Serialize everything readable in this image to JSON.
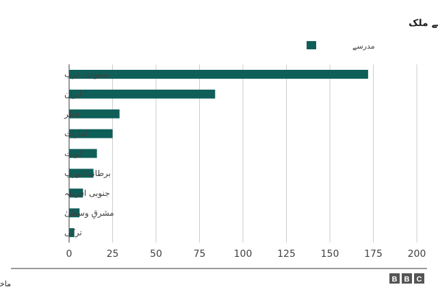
{
  "chart_data": {
    "type": "bar",
    "orientation": "horizontal",
    "title": "امداد دینے والے ملک",
    "categories": [
      "سعودی عرب",
      "ایران",
      "قطر",
      "امارات",
      "کویت",
      "برطانیہ/یورپ",
      "جنوبی افریقہ",
      "مشرقِ وسطیٰ",
      "ترکی"
    ],
    "series": [
      {
        "name": "مدرسے",
        "values": [
          172,
          84,
          29,
          25,
          16,
          14,
          8,
          6,
          3
        ]
      }
    ],
    "xticks": [
      "0",
      "25",
      "50",
      "75",
      "100",
      "125",
      "150",
      "175",
      "200"
    ],
    "xlim": [
      0,
      200
    ],
    "grid": true,
    "legend": "top-right",
    "bar_color": "#0f5f59"
  },
  "footer": {
    "source": "ماخذ: وزارتِ داخلہ، حکومتِ پاکستان",
    "logo_letters": [
      "B",
      "B",
      "C"
    ]
  }
}
